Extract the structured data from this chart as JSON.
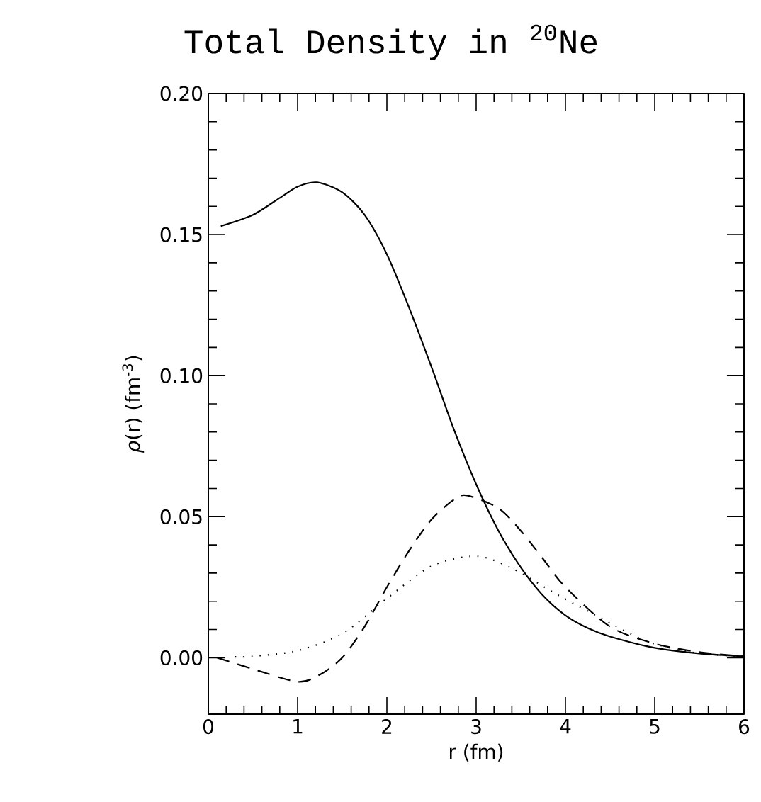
{
  "chart_data": {
    "type": "line",
    "title": "Total Density in $^{20}$Ne",
    "xlabel": "r (fm)",
    "ylabel": "*ρ*(r)  (fm$^{-3}$)",
    "xlim": [
      0,
      6
    ],
    "ylim": [
      -0.02,
      0.2
    ],
    "xticks": [
      0,
      1,
      2,
      3,
      4,
      5,
      6
    ],
    "yticks": [
      {
        "value": 0,
        "label": "0.00"
      },
      {
        "value": 0.05,
        "label": "0.05"
      },
      {
        "value": 0.1,
        "label": "0.10"
      },
      {
        "value": 0.15,
        "label": "0.15"
      },
      {
        "value": 0.2,
        "label": "0.20"
      }
    ],
    "grid": false,
    "marker": "none",
    "series": [
      {
        "color": "#000000",
        "line_style": "solid",
        "x": [
          0.14,
          0.5,
          0.8,
          1,
          1.22,
          1.5,
          1.75,
          2,
          2.25,
          2.5,
          2.75,
          3,
          3.25,
          3.5,
          3.75,
          4,
          4.25,
          4.5,
          5,
          5.5,
          6
        ],
        "values": [
          0.153,
          0.157,
          0.163,
          0.167,
          0.1685,
          0.165,
          0.157,
          0.143,
          0.124,
          0.103,
          0.081,
          0.0615,
          0.045,
          0.032,
          0.022,
          0.015,
          0.0105,
          0.0075,
          0.0035,
          0.0015,
          0.0005
        ]
      },
      {
        "color": "#000000",
        "line_style": "dashed",
        "x": [
          0.1,
          0.5,
          1,
          1.25,
          1.5,
          1.75,
          2,
          2.25,
          2.5,
          2.75,
          2.9,
          3.25,
          3.5,
          3.75,
          4,
          4.5,
          5,
          5.5,
          6
        ],
        "values": [
          0,
          -0.004,
          -0.0085,
          -0.006,
          0,
          0.011,
          0.025,
          0.038,
          0.049,
          0.056,
          0.0575,
          0.053,
          0.045,
          0.035,
          0.025,
          0.011,
          0.005,
          0.002,
          0.0005
        ]
      },
      {
        "color": "#000000",
        "line_style": "dotted",
        "x": [
          0.3,
          0.5,
          1,
          1.5,
          2,
          2.5,
          3,
          3.4,
          3.9,
          4.4,
          4.9,
          5.4,
          5.9
        ],
        "values": [
          0.0003,
          0.0005,
          0.0025,
          0.0085,
          0.021,
          0.0325,
          0.036,
          0.0317,
          0.0225,
          0.014,
          0.006,
          0.002,
          0.0005
        ]
      }
    ]
  }
}
